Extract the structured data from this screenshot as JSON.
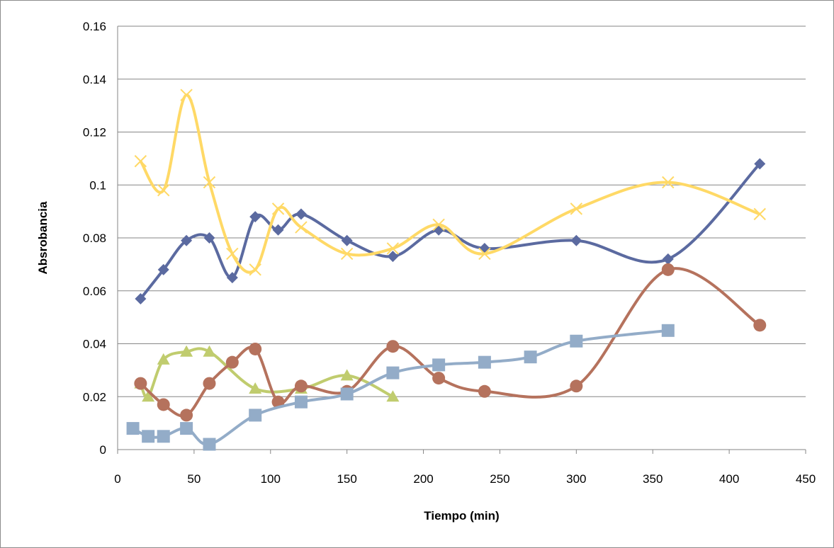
{
  "chart_data": {
    "type": "scatter",
    "title": "",
    "xlabel": "Tiempo (min)",
    "ylabel": "Absrobancia",
    "xlim": [
      0,
      450
    ],
    "ylim": [
      0,
      0.16
    ],
    "x_ticks": [
      "0",
      "50",
      "100",
      "150",
      "200",
      "250",
      "300",
      "350",
      "400",
      "450"
    ],
    "y_ticks": [
      "0",
      "0.02",
      "0.04",
      "0.06",
      "0.08",
      "0.1",
      "0.12",
      "0.14",
      "0.16"
    ],
    "grid": "horizontal",
    "legend": "none",
    "smooth_lines": true,
    "series": [
      {
        "color": "#5b6aa0",
        "marker": "diamond",
        "points": [
          [
            15,
            0.057
          ],
          [
            30,
            0.068
          ],
          [
            45,
            0.079
          ],
          [
            60,
            0.08
          ],
          [
            75,
            0.065
          ],
          [
            90,
            0.088
          ],
          [
            105,
            0.083
          ],
          [
            120,
            0.089
          ],
          [
            150,
            0.079
          ],
          [
            180,
            0.073
          ],
          [
            210,
            0.083
          ],
          [
            240,
            0.076
          ],
          [
            300,
            0.079
          ],
          [
            360,
            0.072
          ],
          [
            420,
            0.108
          ]
        ]
      },
      {
        "color": "#ffd966",
        "marker": "x",
        "points": [
          [
            15,
            0.109
          ],
          [
            30,
            0.098
          ],
          [
            45,
            0.134
          ],
          [
            60,
            0.101
          ],
          [
            75,
            0.074
          ],
          [
            90,
            0.068
          ],
          [
            105,
            0.091
          ],
          [
            120,
            0.084
          ],
          [
            150,
            0.074
          ],
          [
            180,
            0.076
          ],
          [
            210,
            0.085
          ],
          [
            240,
            0.074
          ],
          [
            300,
            0.091
          ],
          [
            360,
            0.101
          ],
          [
            420,
            0.089
          ]
        ]
      },
      {
        "color": "#c0cc6e",
        "marker": "triangle",
        "points": [
          [
            15,
            0.025
          ],
          [
            20,
            0.02
          ],
          [
            30,
            0.034
          ],
          [
            45,
            0.037
          ],
          [
            60,
            0.037
          ],
          [
            90,
            0.023
          ],
          [
            120,
            0.023
          ],
          [
            150,
            0.028
          ],
          [
            180,
            0.02
          ]
        ]
      },
      {
        "color": "#b5725d",
        "marker": "circle",
        "points": [
          [
            15,
            0.025
          ],
          [
            30,
            0.017
          ],
          [
            45,
            0.013
          ],
          [
            60,
            0.025
          ],
          [
            75,
            0.033
          ],
          [
            90,
            0.038
          ],
          [
            105,
            0.018
          ],
          [
            120,
            0.024
          ],
          [
            150,
            0.022
          ],
          [
            180,
            0.039
          ],
          [
            210,
            0.027
          ],
          [
            240,
            0.022
          ],
          [
            300,
            0.024
          ],
          [
            360,
            0.068
          ],
          [
            420,
            0.047
          ]
        ]
      },
      {
        "color": "#93acc8",
        "marker": "square",
        "points": [
          [
            10,
            0.008
          ],
          [
            20,
            0.005
          ],
          [
            30,
            0.005
          ],
          [
            45,
            0.008
          ],
          [
            60,
            0.002
          ],
          [
            90,
            0.013
          ],
          [
            120,
            0.018
          ],
          [
            150,
            0.021
          ],
          [
            180,
            0.029
          ],
          [
            210,
            0.032
          ],
          [
            240,
            0.033
          ],
          [
            270,
            0.035
          ],
          [
            300,
            0.041
          ],
          [
            360,
            0.045
          ]
        ]
      }
    ]
  }
}
